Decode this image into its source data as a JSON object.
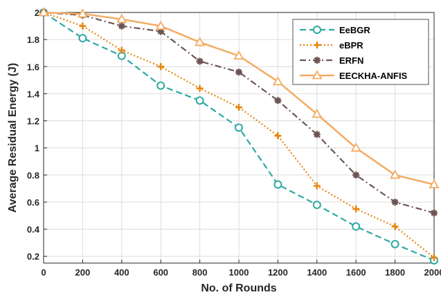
{
  "chart_data": {
    "type": "line",
    "title": "",
    "xlabel": "No. of Rounds",
    "ylabel": "Average Residual Energy (J)",
    "x": [
      0,
      200,
      400,
      600,
      800,
      1000,
      1200,
      1400,
      1600,
      1800,
      2000
    ],
    "xlim": [
      0,
      2000
    ],
    "ylim": [
      0.15,
      2.0
    ],
    "xticks": [
      "0",
      "200",
      "400",
      "600",
      "800",
      "1000",
      "1200",
      "1400",
      "1600",
      "1800",
      "2000"
    ],
    "yticks": [
      "0.2",
      "0.4",
      "0.6",
      "0.8",
      "1",
      "1.2",
      "1.4",
      "1.6",
      "1.8",
      "2"
    ],
    "grid": true,
    "legend_position": "top-right",
    "series": [
      {
        "name": "EeBGR",
        "color": "#2ca9a3",
        "line_style": "dashed",
        "marker": "circle",
        "values": [
          2.0,
          1.81,
          1.68,
          1.46,
          1.35,
          1.15,
          0.73,
          0.58,
          0.42,
          0.29,
          0.17
        ]
      },
      {
        "name": "eBPR",
        "color": "#e8850c",
        "line_style": "dotted",
        "marker": "plus",
        "values": [
          2.0,
          1.9,
          1.72,
          1.6,
          1.44,
          1.3,
          1.09,
          0.72,
          0.55,
          0.42,
          0.19
        ]
      },
      {
        "name": "ERFN",
        "color": "#6e5454",
        "line_style": "dashdot",
        "marker": "star",
        "values": [
          2.0,
          1.98,
          1.9,
          1.86,
          1.64,
          1.56,
          1.35,
          1.1,
          0.8,
          0.6,
          0.52
        ]
      },
      {
        "name": "EECKHA-ANFIS",
        "color": "#f4ab63",
        "line_style": "solid",
        "marker": "triangle",
        "values": [
          2.0,
          1.99,
          1.95,
          1.9,
          1.78,
          1.68,
          1.49,
          1.25,
          1.0,
          0.8,
          0.73
        ]
      }
    ]
  }
}
